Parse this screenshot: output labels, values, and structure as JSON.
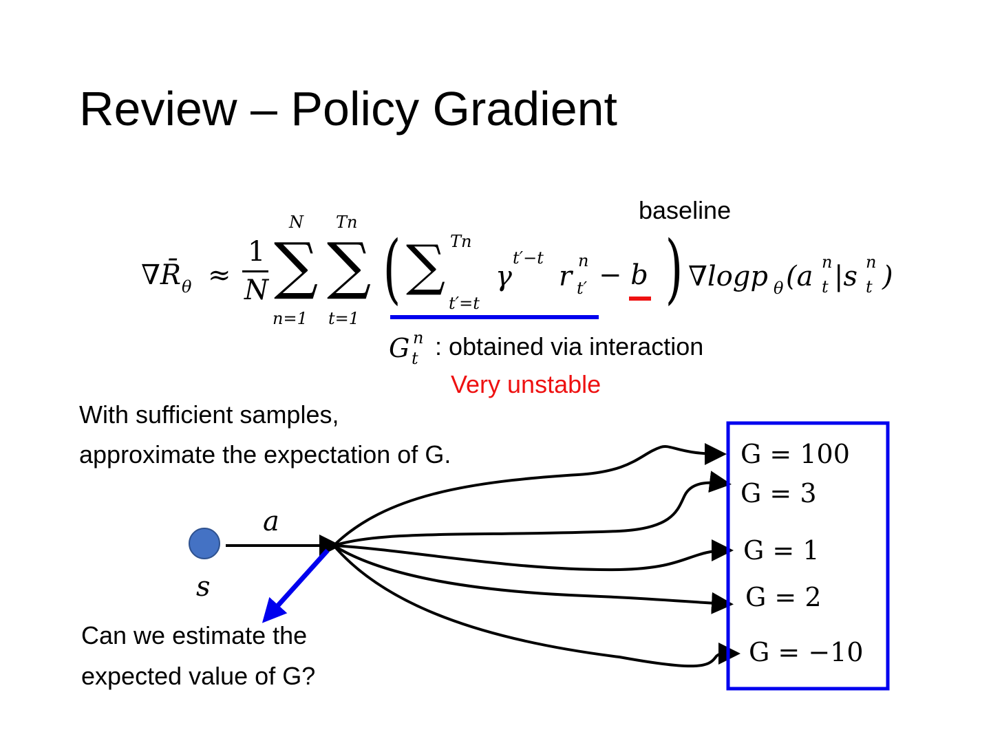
{
  "slide": {
    "title": "Review – Policy Gradient",
    "formula": {
      "lhs": "∇R̄",
      "lhs_sub": "θ",
      "approx": "≈",
      "frac_num": "1",
      "frac_den": "N",
      "sum1_top": "N",
      "sum1_bottom": "n=1",
      "sum2_top": "Tn",
      "sum2_bottom": "t=1",
      "sum3_top": "Tn",
      "sum3_bottom": "t′=t",
      "gamma_term": "γ",
      "gamma_exp": "t′−t",
      "reward": "r",
      "reward_sup": "n",
      "reward_sub": "t′",
      "minus_b": "− b",
      "log_term": "∇logp",
      "log_sub": "θ",
      "args": "(a",
      "args_sup1": "n",
      "args_sub1": "t",
      "args_mid": "|s",
      "args_sup2": "n",
      "args_sub2": "t",
      "args_close": ")"
    },
    "baseline_label": "baseline",
    "G_symbol": "G",
    "G_sup": "n",
    "G_sub": "t",
    "G_note": ": obtained via interaction",
    "unstable_note": "Very unstable",
    "samples_note_line1": "With sufficient samples,",
    "samples_note_line2": "approximate the expectation of G.",
    "state_label": "s",
    "action_label": "a",
    "question_line1": "Can we estimate the",
    "question_line2": "expected value of G?",
    "returns": [
      "G = 100",
      "G = 3",
      "G = 1",
      "G = 2",
      "G = −10"
    ],
    "colors": {
      "blue": "#0000ee",
      "red": "#ee1111",
      "node": "#4472c4"
    }
  }
}
